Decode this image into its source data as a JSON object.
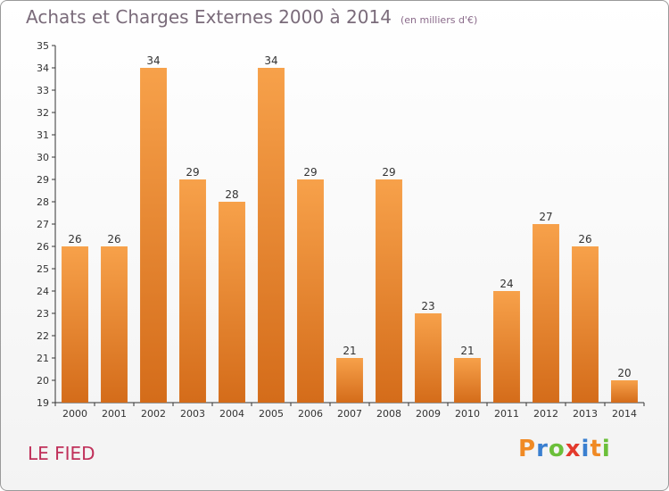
{
  "header": {
    "title": "Achats et Charges Externes 2000 à 2014",
    "subtitle": "(en milliers d'€)"
  },
  "footer": {
    "commune": "LE FIED",
    "logo": [
      "P",
      "r",
      "o",
      "x",
      "i",
      "t",
      "i"
    ]
  },
  "colors": {
    "bar_light": "#f7a14a",
    "bar_dark": "#d46c1a",
    "axis": "#333333",
    "grid": "#cccccc"
  },
  "chart_data": {
    "type": "bar",
    "categories": [
      "2000",
      "2001",
      "2002",
      "2003",
      "2004",
      "2005",
      "2006",
      "2007",
      "2008",
      "2009",
      "2010",
      "2011",
      "2012",
      "2013",
      "2014"
    ],
    "values": [
      26,
      26,
      34,
      29,
      28,
      34,
      29,
      21,
      29,
      23,
      21,
      24,
      27,
      26,
      20
    ],
    "title": "Achats et Charges Externes 2000 à 2014",
    "subtitle": "(en milliers d'€)",
    "xlabel": "",
    "ylabel": "",
    "ylim": [
      19,
      35
    ],
    "yticks": [
      19,
      20,
      21,
      22,
      23,
      24,
      25,
      26,
      27,
      28,
      29,
      30,
      31,
      32,
      33,
      34,
      35
    ],
    "grid": false,
    "legend": "none"
  }
}
